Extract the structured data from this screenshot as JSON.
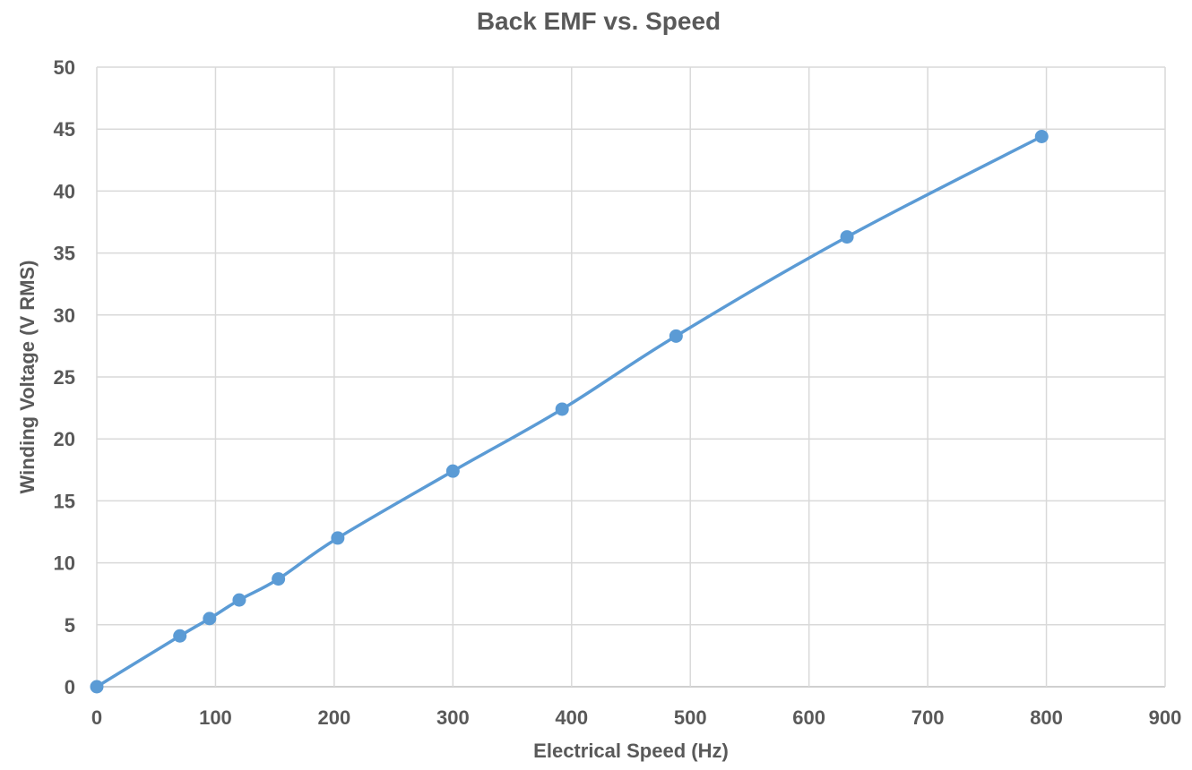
{
  "chart_data": {
    "type": "scatter",
    "title": "Back EMF vs. Speed",
    "xlabel": "Electrical Speed (Hz)",
    "ylabel": "Winding Voltage (V RMS)",
    "xlim": [
      0,
      900
    ],
    "ylim": [
      0,
      50
    ],
    "xticks": [
      0,
      100,
      200,
      300,
      400,
      500,
      600,
      700,
      800,
      900
    ],
    "yticks": [
      0,
      5,
      10,
      15,
      20,
      25,
      30,
      35,
      40,
      45,
      50
    ],
    "grid": true,
    "legend": "none",
    "line": "smooth",
    "markers": true,
    "series": [
      {
        "color": "#5b9bd5",
        "x": [
          0,
          70,
          95,
          120,
          153,
          203,
          300,
          392,
          488,
          632,
          796
        ],
        "y": [
          0,
          4.1,
          5.5,
          7.0,
          8.7,
          12.0,
          17.4,
          22.4,
          28.3,
          36.3,
          44.4
        ]
      }
    ]
  }
}
